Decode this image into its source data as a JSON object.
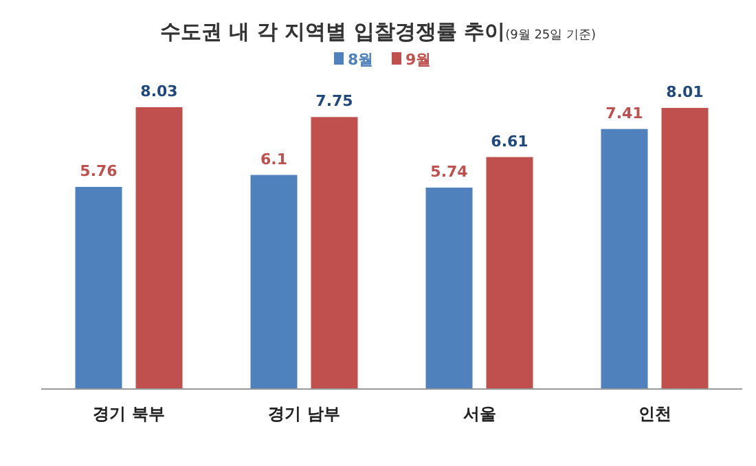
{
  "chart_data": {
    "type": "bar",
    "title": "수도권 내 각 지역별 입찰경쟁률 추이",
    "subtitle": "(9월 25일 기준)",
    "categories": [
      "경기 북부",
      "경기 남부",
      "서울",
      "인천"
    ],
    "series": [
      {
        "name": "8월",
        "color": "#4f81bd",
        "values": [
          5.76,
          6.1,
          5.74,
          7.41
        ]
      },
      {
        "name": "9월",
        "color": "#c0504d",
        "values": [
          8.03,
          7.75,
          6.61,
          8.01
        ]
      }
    ],
    "data_labels": true,
    "legend": "top"
  }
}
